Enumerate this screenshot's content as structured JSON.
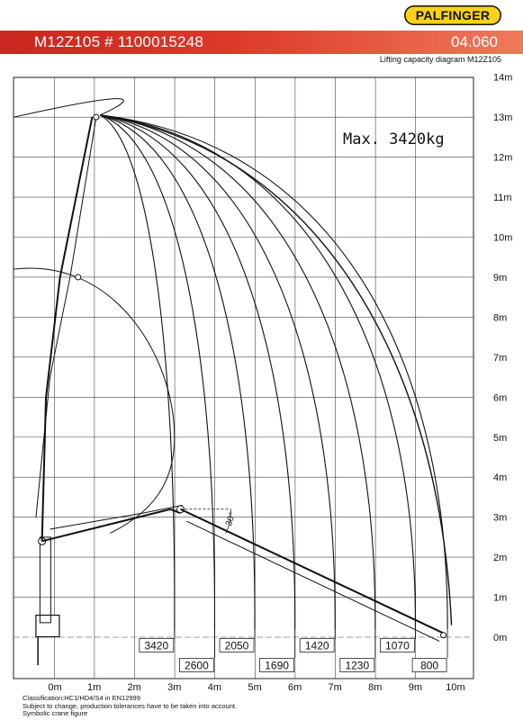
{
  "header": {
    "logo": "PALFINGER",
    "model_title": "M12Z105 # 1100015248",
    "sheet_number": "04.060",
    "subtitle": "Lifting capacity diagram M12Z105"
  },
  "diagram": {
    "max_load_label": "Max. 3420kg",
    "boom_angle_label": "30°",
    "x_axis_ticks": [
      "0m",
      "1m",
      "2m",
      "3m",
      "4m",
      "5m",
      "6m",
      "7m",
      "8m",
      "9m",
      "10m"
    ],
    "y_axis_ticks": [
      "0m",
      "1m",
      "2m",
      "3m",
      "4m",
      "5m",
      "6m",
      "7m",
      "8m",
      "9m",
      "10m",
      "11m",
      "12m",
      "13m",
      "14m"
    ],
    "load_labels_upper": [
      "3420",
      "2050",
      "1420",
      "1070"
    ],
    "load_labels_lower": [
      "2600",
      "1690",
      "1230",
      "800"
    ]
  },
  "chart_data": {
    "type": "line",
    "title": "Lifting capacity diagram M12Z105",
    "xlabel": "",
    "ylabel": "",
    "xlim": [
      -1,
      11
    ],
    "ylim": [
      -1,
      14
    ],
    "x_ticks": [
      "0m",
      "1m",
      "2m",
      "3m",
      "4m",
      "5m",
      "6m",
      "7m",
      "8m",
      "9m",
      "10m"
    ],
    "y_ticks": [
      "0m",
      "1m",
      "2m",
      "3m",
      "4m",
      "5m",
      "6m",
      "7m",
      "8m",
      "9m",
      "10m",
      "11m",
      "12m",
      "13m",
      "14m"
    ],
    "grid": true,
    "max_capacity": "Max. 3420kg",
    "capacity_curves": [
      {
        "load_kg": 3420,
        "outreach_m": 3.0
      },
      {
        "load_kg": 2600,
        "outreach_m": 4.0
      },
      {
        "load_kg": 2050,
        "outreach_m": 5.0
      },
      {
        "load_kg": 1690,
        "outreach_m": 6.0
      },
      {
        "load_kg": 1420,
        "outreach_m": 7.0
      },
      {
        "load_kg": 1230,
        "outreach_m": 8.0
      },
      {
        "load_kg": 1070,
        "outreach_m": 9.0
      },
      {
        "load_kg": 800,
        "outreach_m": 9.8
      }
    ],
    "max_height_m": 13.0,
    "max_outreach_m": 9.8
  },
  "footer": {
    "line1": "Classification:HC1/HD4/S4 in EN12999",
    "line2": "Subject to change, production tolerances have to be taken into account.",
    "line3": "Symbolic crane figure"
  }
}
